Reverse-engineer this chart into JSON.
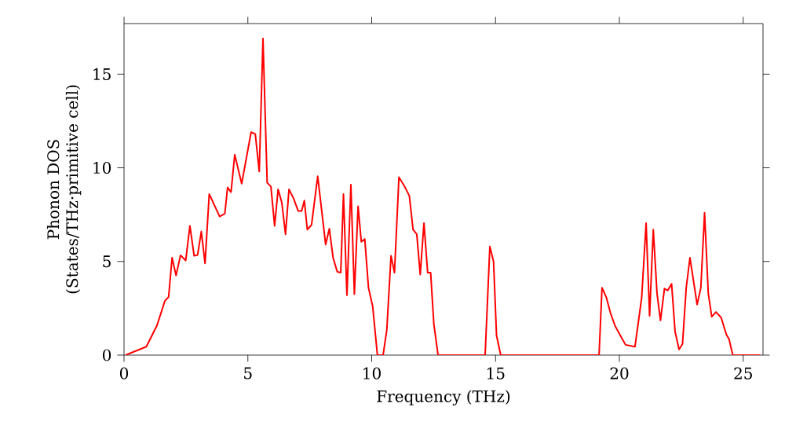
{
  "chart_data": {
    "type": "line",
    "xlabel": "Frequency (THz)",
    "ylabel": "Phonon DOS\n(States/THz·primitive cell)",
    "xlim": [
      0,
      25.8
    ],
    "ylim": [
      0,
      17.7
    ],
    "xticks": [
      0,
      5,
      10,
      15,
      20,
      25
    ],
    "yticks": [
      0,
      5,
      10,
      15
    ],
    "series": [
      {
        "color": "#ff0000",
        "x": [
          0.06,
          0.9,
          1.33,
          1.65,
          1.8,
          1.94,
          2.1,
          2.28,
          2.49,
          2.66,
          2.83,
          2.97,
          3.12,
          3.27,
          3.44,
          3.86,
          4.07,
          4.18,
          4.32,
          4.47,
          4.75,
          5.13,
          5.3,
          5.46,
          5.61,
          5.78,
          5.93,
          6.08,
          6.22,
          6.37,
          6.52,
          6.66,
          6.85,
          7.03,
          7.17,
          7.28,
          7.4,
          7.57,
          7.82,
          8.14,
          8.29,
          8.44,
          8.61,
          8.75,
          8.86,
          9.0,
          9.16,
          9.3,
          9.45,
          9.58,
          9.72,
          9.87,
          10.04,
          10.23,
          10.46,
          10.61,
          10.78,
          10.92,
          11.1,
          11.35,
          11.52,
          11.67,
          11.82,
          11.96,
          12.11,
          12.26,
          12.38,
          12.51,
          12.68,
          14.58,
          14.77,
          14.92,
          15.04,
          15.21,
          19.18,
          19.3,
          19.47,
          19.64,
          19.83,
          20.04,
          20.25,
          20.63,
          20.9,
          21.08,
          21.22,
          21.37,
          21.52,
          21.66,
          21.82,
          21.95,
          22.11,
          22.25,
          22.41,
          22.55,
          22.7,
          22.85,
          23.14,
          23.29,
          23.44,
          23.59,
          23.73,
          23.9,
          24.11,
          24.32,
          24.43,
          24.58,
          25.7
        ],
        "values": [
          0,
          0.45,
          1.58,
          2.9,
          3.1,
          5.2,
          4.25,
          5.33,
          5.05,
          6.9,
          5.3,
          5.35,
          6.6,
          4.9,
          8.6,
          7.4,
          7.55,
          8.95,
          8.7,
          10.7,
          9.15,
          11.9,
          11.8,
          9.8,
          16.9,
          9.2,
          9.0,
          6.9,
          8.85,
          8.15,
          6.45,
          8.85,
          8.35,
          7.7,
          7.7,
          8.25,
          6.7,
          6.95,
          9.55,
          5.9,
          6.75,
          5.2,
          4.45,
          4.4,
          8.6,
          3.2,
          9.1,
          3.25,
          7.95,
          6.05,
          6.2,
          3.6,
          2.6,
          0,
          0,
          1.35,
          5.3,
          4.4,
          9.5,
          8.95,
          8.5,
          6.7,
          6.45,
          4.3,
          7.05,
          4.4,
          4.4,
          1.65,
          0,
          0,
          5.8,
          5.0,
          1.05,
          0,
          0,
          3.6,
          3.1,
          2.25,
          1.55,
          1.05,
          0.55,
          0.45,
          3.05,
          7.05,
          2.1,
          6.7,
          3.3,
          1.85,
          3.55,
          3.45,
          3.8,
          1.25,
          0.3,
          0.6,
          3.6,
          5.2,
          2.7,
          3.6,
          7.6,
          3.3,
          2.05,
          2.3,
          2.0,
          1.1,
          0.85,
          0,
          0
        ]
      }
    ]
  }
}
